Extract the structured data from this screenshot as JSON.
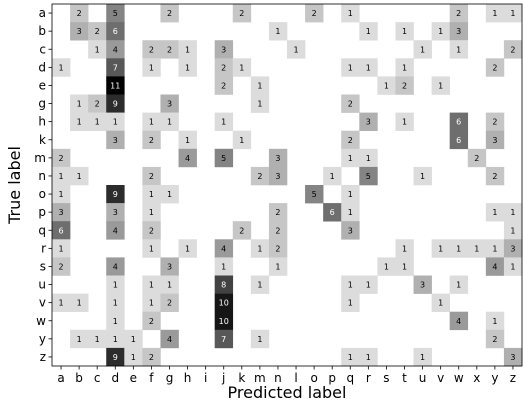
{
  "chart_data": {
    "type": "heatmap",
    "xlabel": "Predicted label",
    "ylabel": "True label",
    "x_categories": [
      "a",
      "b",
      "c",
      "d",
      "e",
      "f",
      "g",
      "h",
      "i",
      "j",
      "k",
      "m",
      "n",
      "l",
      "o",
      "p",
      "q",
      "r",
      "s",
      "t",
      "u",
      "v",
      "w",
      "x",
      "y",
      "z"
    ],
    "y_categories": [
      "a",
      "b",
      "c",
      "d",
      "e",
      "g",
      "h",
      "k",
      "m",
      "n",
      "o",
      "p",
      "q",
      "r",
      "s",
      "u",
      "v",
      "w",
      "y",
      "z"
    ],
    "value_range": [
      0,
      11
    ],
    "colormap": "Greys",
    "cells": [
      {
        "row": 0,
        "col": 1,
        "v": 2
      },
      {
        "row": 0,
        "col": 3,
        "v": 5
      },
      {
        "row": 0,
        "col": 6,
        "v": 2
      },
      {
        "row": 0,
        "col": 10,
        "v": 2
      },
      {
        "row": 0,
        "col": 14,
        "v": 2
      },
      {
        "row": 0,
        "col": 16,
        "v": 1
      },
      {
        "row": 0,
        "col": 22,
        "v": 2
      },
      {
        "row": 0,
        "col": 24,
        "v": 1
      },
      {
        "row": 0,
        "col": 25,
        "v": 1
      },
      {
        "row": 1,
        "col": 1,
        "v": 3
      },
      {
        "row": 1,
        "col": 2,
        "v": 2
      },
      {
        "row": 1,
        "col": 3,
        "v": 6
      },
      {
        "row": 1,
        "col": 12,
        "v": 1
      },
      {
        "row": 1,
        "col": 17,
        "v": 1
      },
      {
        "row": 1,
        "col": 19,
        "v": 1
      },
      {
        "row": 1,
        "col": 21,
        "v": 1
      },
      {
        "row": 1,
        "col": 22,
        "v": 3
      },
      {
        "row": 2,
        "col": 2,
        "v": 1
      },
      {
        "row": 2,
        "col": 3,
        "v": 4
      },
      {
        "row": 2,
        "col": 5,
        "v": 2
      },
      {
        "row": 2,
        "col": 6,
        "v": 2
      },
      {
        "row": 2,
        "col": 7,
        "v": 1
      },
      {
        "row": 2,
        "col": 9,
        "v": 3
      },
      {
        "row": 2,
        "col": 13,
        "v": 1
      },
      {
        "row": 2,
        "col": 20,
        "v": 1
      },
      {
        "row": 2,
        "col": 22,
        "v": 1
      },
      {
        "row": 2,
        "col": 25,
        "v": 2
      },
      {
        "row": 3,
        "col": 0,
        "v": 1
      },
      {
        "row": 3,
        "col": 3,
        "v": 7
      },
      {
        "row": 3,
        "col": 5,
        "v": 1
      },
      {
        "row": 3,
        "col": 7,
        "v": 1
      },
      {
        "row": 3,
        "col": 9,
        "v": 2
      },
      {
        "row": 3,
        "col": 10,
        "v": 1
      },
      {
        "row": 3,
        "col": 16,
        "v": 1
      },
      {
        "row": 3,
        "col": 17,
        "v": 1
      },
      {
        "row": 3,
        "col": 19,
        "v": 1
      },
      {
        "row": 3,
        "col": 24,
        "v": 2
      },
      {
        "row": 4,
        "col": 3,
        "v": 11
      },
      {
        "row": 4,
        "col": 9,
        "v": 2
      },
      {
        "row": 4,
        "col": 11,
        "v": 1
      },
      {
        "row": 4,
        "col": 18,
        "v": 1
      },
      {
        "row": 4,
        "col": 19,
        "v": 2
      },
      {
        "row": 4,
        "col": 21,
        "v": 1
      },
      {
        "row": 5,
        "col": 1,
        "v": 1
      },
      {
        "row": 5,
        "col": 2,
        "v": 2
      },
      {
        "row": 5,
        "col": 3,
        "v": 9
      },
      {
        "row": 5,
        "col": 6,
        "v": 3
      },
      {
        "row": 5,
        "col": 11,
        "v": 1
      },
      {
        "row": 5,
        "col": 16,
        "v": 2
      },
      {
        "row": 6,
        "col": 1,
        "v": 1
      },
      {
        "row": 6,
        "col": 2,
        "v": 1
      },
      {
        "row": 6,
        "col": 3,
        "v": 1
      },
      {
        "row": 6,
        "col": 5,
        "v": 1
      },
      {
        "row": 6,
        "col": 6,
        "v": 1
      },
      {
        "row": 6,
        "col": 9,
        "v": 1
      },
      {
        "row": 6,
        "col": 17,
        "v": 3
      },
      {
        "row": 6,
        "col": 19,
        "v": 1
      },
      {
        "row": 6,
        "col": 22,
        "v": 6
      },
      {
        "row": 6,
        "col": 24,
        "v": 2
      },
      {
        "row": 7,
        "col": 3,
        "v": 3
      },
      {
        "row": 7,
        "col": 5,
        "v": 2
      },
      {
        "row": 7,
        "col": 7,
        "v": 1
      },
      {
        "row": 7,
        "col": 10,
        "v": 1
      },
      {
        "row": 7,
        "col": 16,
        "v": 2
      },
      {
        "row": 7,
        "col": 22,
        "v": 6
      },
      {
        "row": 7,
        "col": 24,
        "v": 3
      },
      {
        "row": 8,
        "col": 0,
        "v": 2
      },
      {
        "row": 8,
        "col": 7,
        "v": 4
      },
      {
        "row": 8,
        "col": 9,
        "v": 5
      },
      {
        "row": 8,
        "col": 12,
        "v": 3
      },
      {
        "row": 8,
        "col": 16,
        "v": 1
      },
      {
        "row": 8,
        "col": 17,
        "v": 1
      },
      {
        "row": 8,
        "col": 23,
        "v": 2
      },
      {
        "row": 9,
        "col": 0,
        "v": 1
      },
      {
        "row": 9,
        "col": 1,
        "v": 1
      },
      {
        "row": 9,
        "col": 5,
        "v": 2
      },
      {
        "row": 9,
        "col": 11,
        "v": 2
      },
      {
        "row": 9,
        "col": 12,
        "v": 3
      },
      {
        "row": 9,
        "col": 15,
        "v": 1
      },
      {
        "row": 9,
        "col": 17,
        "v": 5
      },
      {
        "row": 9,
        "col": 20,
        "v": 1
      },
      {
        "row": 9,
        "col": 24,
        "v": 2
      },
      {
        "row": 10,
        "col": 0,
        "v": 1
      },
      {
        "row": 10,
        "col": 3,
        "v": 9
      },
      {
        "row": 10,
        "col": 5,
        "v": 1
      },
      {
        "row": 10,
        "col": 6,
        "v": 1
      },
      {
        "row": 10,
        "col": 14,
        "v": 5
      },
      {
        "row": 10,
        "col": 16,
        "v": 1
      },
      {
        "row": 11,
        "col": 0,
        "v": 3
      },
      {
        "row": 11,
        "col": 3,
        "v": 3
      },
      {
        "row": 11,
        "col": 5,
        "v": 1
      },
      {
        "row": 11,
        "col": 12,
        "v": 2
      },
      {
        "row": 11,
        "col": 15,
        "v": 6
      },
      {
        "row": 11,
        "col": 16,
        "v": 1
      },
      {
        "row": 11,
        "col": 24,
        "v": 1
      },
      {
        "row": 11,
        "col": 25,
        "v": 1
      },
      {
        "row": 12,
        "col": 0,
        "v": 6
      },
      {
        "row": 12,
        "col": 3,
        "v": 4
      },
      {
        "row": 12,
        "col": 5,
        "v": 2
      },
      {
        "row": 12,
        "col": 10,
        "v": 2
      },
      {
        "row": 12,
        "col": 12,
        "v": 2
      },
      {
        "row": 12,
        "col": 16,
        "v": 3
      },
      {
        "row": 12,
        "col": 25,
        "v": 1
      },
      {
        "row": 13,
        "col": 0,
        "v": 1
      },
      {
        "row": 13,
        "col": 5,
        "v": 1
      },
      {
        "row": 13,
        "col": 7,
        "v": 1
      },
      {
        "row": 13,
        "col": 9,
        "v": 4
      },
      {
        "row": 13,
        "col": 11,
        "v": 1
      },
      {
        "row": 13,
        "col": 12,
        "v": 2
      },
      {
        "row": 13,
        "col": 19,
        "v": 1
      },
      {
        "row": 13,
        "col": 21,
        "v": 1
      },
      {
        "row": 13,
        "col": 22,
        "v": 1
      },
      {
        "row": 13,
        "col": 23,
        "v": 1
      },
      {
        "row": 13,
        "col": 24,
        "v": 1
      },
      {
        "row": 13,
        "col": 25,
        "v": 3
      },
      {
        "row": 14,
        "col": 0,
        "v": 2
      },
      {
        "row": 14,
        "col": 3,
        "v": 4
      },
      {
        "row": 14,
        "col": 6,
        "v": 3
      },
      {
        "row": 14,
        "col": 9,
        "v": 1
      },
      {
        "row": 14,
        "col": 12,
        "v": 1
      },
      {
        "row": 14,
        "col": 18,
        "v": 1
      },
      {
        "row": 14,
        "col": 19,
        "v": 1
      },
      {
        "row": 14,
        "col": 24,
        "v": 4
      },
      {
        "row": 14,
        "col": 25,
        "v": 1
      },
      {
        "row": 15,
        "col": 3,
        "v": 1
      },
      {
        "row": 15,
        "col": 5,
        "v": 1
      },
      {
        "row": 15,
        "col": 6,
        "v": 1
      },
      {
        "row": 15,
        "col": 9,
        "v": 8
      },
      {
        "row": 15,
        "col": 11,
        "v": 1
      },
      {
        "row": 15,
        "col": 16,
        "v": 1
      },
      {
        "row": 15,
        "col": 17,
        "v": 1
      },
      {
        "row": 15,
        "col": 20,
        "v": 3
      },
      {
        "row": 15,
        "col": 22,
        "v": 1
      },
      {
        "row": 16,
        "col": 0,
        "v": 1
      },
      {
        "row": 16,
        "col": 1,
        "v": 1
      },
      {
        "row": 16,
        "col": 3,
        "v": 1
      },
      {
        "row": 16,
        "col": 5,
        "v": 1
      },
      {
        "row": 16,
        "col": 6,
        "v": 2
      },
      {
        "row": 16,
        "col": 9,
        "v": 10
      },
      {
        "row": 16,
        "col": 16,
        "v": 1
      },
      {
        "row": 16,
        "col": 21,
        "v": 1
      },
      {
        "row": 17,
        "col": 3,
        "v": 1
      },
      {
        "row": 17,
        "col": 5,
        "v": 2
      },
      {
        "row": 17,
        "col": 9,
        "v": 10
      },
      {
        "row": 17,
        "col": 22,
        "v": 4
      },
      {
        "row": 17,
        "col": 24,
        "v": 1
      },
      {
        "row": 18,
        "col": 1,
        "v": 1
      },
      {
        "row": 18,
        "col": 2,
        "v": 1
      },
      {
        "row": 18,
        "col": 3,
        "v": 1
      },
      {
        "row": 18,
        "col": 4,
        "v": 1
      },
      {
        "row": 18,
        "col": 6,
        "v": 4
      },
      {
        "row": 18,
        "col": 9,
        "v": 7
      },
      {
        "row": 18,
        "col": 11,
        "v": 1
      },
      {
        "row": 18,
        "col": 24,
        "v": 2
      },
      {
        "row": 19,
        "col": 3,
        "v": 9
      },
      {
        "row": 19,
        "col": 4,
        "v": 1
      },
      {
        "row": 19,
        "col": 5,
        "v": 2
      },
      {
        "row": 19,
        "col": 16,
        "v": 1
      },
      {
        "row": 19,
        "col": 17,
        "v": 1
      },
      {
        "row": 19,
        "col": 20,
        "v": 1
      },
      {
        "row": 19,
        "col": 25,
        "v": 3
      }
    ]
  }
}
